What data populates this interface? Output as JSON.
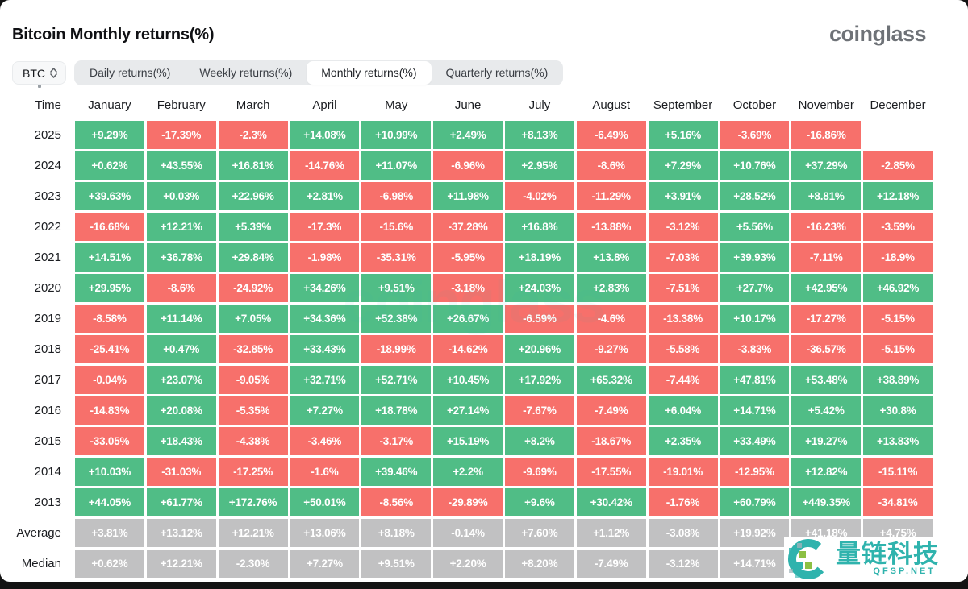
{
  "page": {
    "title": "Bitcoin Monthly returns(%)",
    "brand": "coinglass",
    "watermark_text": "量链科技",
    "watermark_subtext": "QFSP.NET"
  },
  "controls": {
    "symbol_select": {
      "value": "BTC"
    },
    "tabs": [
      {
        "label": "Daily returns(%)",
        "active": false
      },
      {
        "label": "Weekly returns(%)",
        "active": false
      },
      {
        "label": "Monthly returns(%)",
        "active": true
      },
      {
        "label": "Quarterly returns(%)",
        "active": false
      }
    ]
  },
  "colors": {
    "positive": "#50bd86",
    "negative": "#f7706b",
    "neutral": "#c1c1c2",
    "watermark_accent": "#2fb3ad"
  },
  "chart_data": {
    "type": "heatmap",
    "title": "Bitcoin Monthly returns(%)",
    "time_header": "Time",
    "months": [
      "January",
      "February",
      "March",
      "April",
      "May",
      "June",
      "July",
      "August",
      "September",
      "October",
      "November",
      "December"
    ],
    "rows": [
      {
        "label": "2025",
        "type": "year",
        "values": [
          "+9.29%",
          "-17.39%",
          "-2.3%",
          "+14.08%",
          "+10.99%",
          "+2.49%",
          "+8.13%",
          "-6.49%",
          "+5.16%",
          "-3.69%",
          "-16.86%",
          null
        ]
      },
      {
        "label": "2024",
        "type": "year",
        "values": [
          "+0.62%",
          "+43.55%",
          "+16.81%",
          "-14.76%",
          "+11.07%",
          "-6.96%",
          "+2.95%",
          "-8.6%",
          "+7.29%",
          "+10.76%",
          "+37.29%",
          "-2.85%"
        ]
      },
      {
        "label": "2023",
        "type": "year",
        "values": [
          "+39.63%",
          "+0.03%",
          "+22.96%",
          "+2.81%",
          "-6.98%",
          "+11.98%",
          "-4.02%",
          "-11.29%",
          "+3.91%",
          "+28.52%",
          "+8.81%",
          "+12.18%"
        ]
      },
      {
        "label": "2022",
        "type": "year",
        "values": [
          "-16.68%",
          "+12.21%",
          "+5.39%",
          "-17.3%",
          "-15.6%",
          "-37.28%",
          "+16.8%",
          "-13.88%",
          "-3.12%",
          "+5.56%",
          "-16.23%",
          "-3.59%"
        ]
      },
      {
        "label": "2021",
        "type": "year",
        "values": [
          "+14.51%",
          "+36.78%",
          "+29.84%",
          "-1.98%",
          "-35.31%",
          "-5.95%",
          "+18.19%",
          "+13.8%",
          "-7.03%",
          "+39.93%",
          "-7.11%",
          "-18.9%"
        ]
      },
      {
        "label": "2020",
        "type": "year",
        "values": [
          "+29.95%",
          "-8.6%",
          "-24.92%",
          "+34.26%",
          "+9.51%",
          "-3.18%",
          "+24.03%",
          "+2.83%",
          "-7.51%",
          "+27.7%",
          "+42.95%",
          "+46.92%"
        ]
      },
      {
        "label": "2019",
        "type": "year",
        "values": [
          "-8.58%",
          "+11.14%",
          "+7.05%",
          "+34.36%",
          "+52.38%",
          "+26.67%",
          "-6.59%",
          "-4.6%",
          "-13.38%",
          "+10.17%",
          "-17.27%",
          "-5.15%"
        ]
      },
      {
        "label": "2018",
        "type": "year",
        "values": [
          "-25.41%",
          "+0.47%",
          "-32.85%",
          "+33.43%",
          "-18.99%",
          "-14.62%",
          "+20.96%",
          "-9.27%",
          "-5.58%",
          "-3.83%",
          "-36.57%",
          "-5.15%"
        ]
      },
      {
        "label": "2017",
        "type": "year",
        "values": [
          "-0.04%",
          "+23.07%",
          "-9.05%",
          "+32.71%",
          "+52.71%",
          "+10.45%",
          "+17.92%",
          "+65.32%",
          "-7.44%",
          "+47.81%",
          "+53.48%",
          "+38.89%"
        ]
      },
      {
        "label": "2016",
        "type": "year",
        "values": [
          "-14.83%",
          "+20.08%",
          "-5.35%",
          "+7.27%",
          "+18.78%",
          "+27.14%",
          "-7.67%",
          "-7.49%",
          "+6.04%",
          "+14.71%",
          "+5.42%",
          "+30.8%"
        ]
      },
      {
        "label": "2015",
        "type": "year",
        "values": [
          "-33.05%",
          "+18.43%",
          "-4.38%",
          "-3.46%",
          "-3.17%",
          "+15.19%",
          "+8.2%",
          "-18.67%",
          "+2.35%",
          "+33.49%",
          "+19.27%",
          "+13.83%"
        ]
      },
      {
        "label": "2014",
        "type": "year",
        "values": [
          "+10.03%",
          "-31.03%",
          "-17.25%",
          "-1.6%",
          "+39.46%",
          "+2.2%",
          "-9.69%",
          "-17.55%",
          "-19.01%",
          "-12.95%",
          "+12.82%",
          "-15.11%"
        ]
      },
      {
        "label": "2013",
        "type": "year",
        "values": [
          "+44.05%",
          "+61.77%",
          "+172.76%",
          "+50.01%",
          "-8.56%",
          "-29.89%",
          "+9.6%",
          "+30.42%",
          "-1.76%",
          "+60.79%",
          "+449.35%",
          "-34.81%"
        ]
      },
      {
        "label": "Average",
        "type": "aggregate",
        "values": [
          "+3.81%",
          "+13.12%",
          "+12.21%",
          "+13.06%",
          "+8.18%",
          "-0.14%",
          "+7.60%",
          "+1.12%",
          "-3.08%",
          "+19.92%",
          "+41.18%",
          "+4.75%"
        ]
      },
      {
        "label": "Median",
        "type": "aggregate",
        "values": [
          "+0.62%",
          "+12.21%",
          "-2.30%",
          "+7.27%",
          "+9.51%",
          "+2.20%",
          "+8.20%",
          "-7.49%",
          "-3.12%",
          "+14.71%",
          null,
          null
        ]
      }
    ]
  }
}
